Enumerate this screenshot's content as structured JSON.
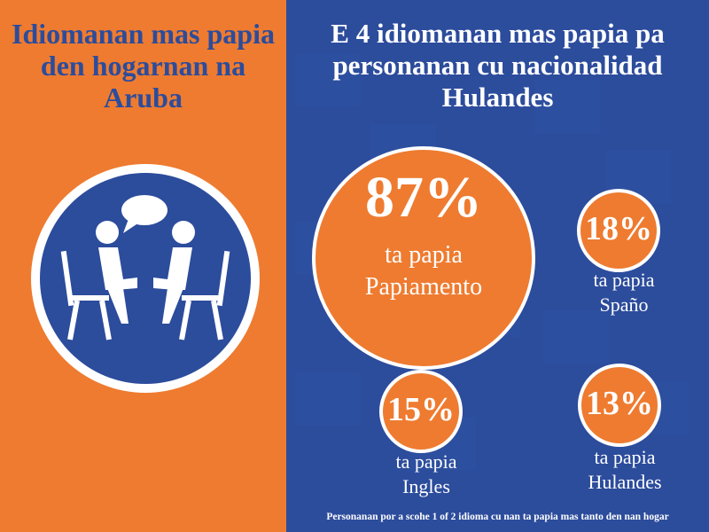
{
  "left_panel": {
    "title": "Idiomanan mas papia den hogarnan na Aruba",
    "icon": "two-people-talking-icon"
  },
  "right_panel": {
    "title": "E 4 idiomanan mas papia pa personanan cu nacionalidad Hulandes",
    "stats": [
      {
        "value": "87%",
        "label_line1": "ta papia",
        "label_line2": "Papiamento"
      },
      {
        "value": "18%",
        "label_line1": "ta papia",
        "label_line2": "Spaño"
      },
      {
        "value": "15%",
        "label_line1": "ta papia",
        "label_line2": "Ingles"
      },
      {
        "value": "13%",
        "label_line1": "ta papia",
        "label_line2": "Hulandes"
      }
    ],
    "footnote": "Personanan por a scohe 1 of 2 idioma cu nan ta papia mas tanto den nan hogar"
  },
  "colors": {
    "orange": "#EE7B30",
    "blue": "#2C4C9C",
    "white": "#FFFFFF"
  }
}
